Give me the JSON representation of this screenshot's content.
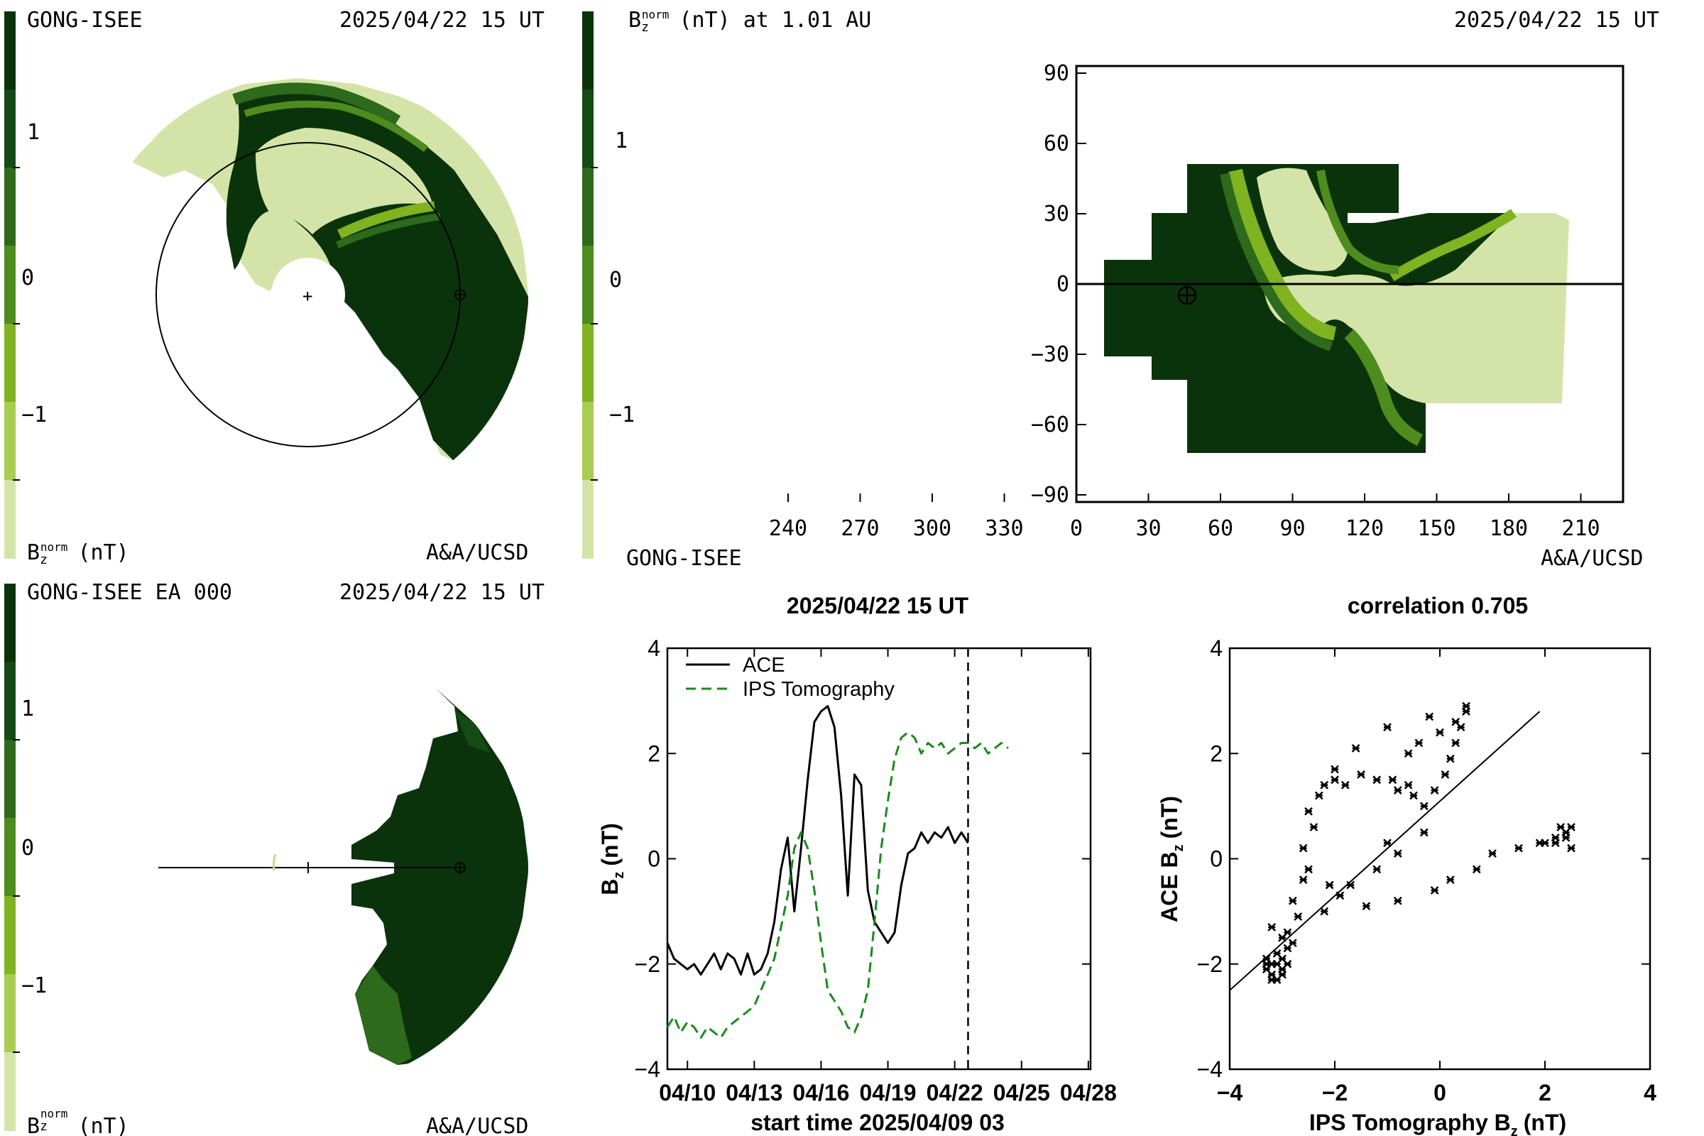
{
  "colors": {
    "scale": [
      "#d4e4a8",
      "#a9cc52",
      "#7fb320",
      "#4f8c1e",
      "#2d6a1c",
      "#144a14",
      "#0b330b"
    ],
    "obs": "#000000",
    "model": "#1a8a1a"
  },
  "panel_tl": {
    "source": "GONG-ISEE",
    "datetime": "2025/04/22 15 UT",
    "credit": "A&A/UCSD",
    "bar_title": "B",
    "bar_sub": "z",
    "bar_sup": "norm",
    "bar_unit": "(nT)",
    "ticks": [
      "1",
      "0",
      "−1"
    ]
  },
  "panel_tr": {
    "title_var": "B",
    "title_sub": "z",
    "title_sup": "norm",
    "title_rest": "(nT) at 1.01 AU",
    "datetime": "2025/04/22 15 UT",
    "source": "GONG-ISEE",
    "credit": "A&A/UCSD",
    "bar_ticks": [
      "1",
      "0",
      "−1"
    ],
    "yticks": [
      "90",
      "60",
      "30",
      "0",
      "−30",
      "−60",
      "−90"
    ],
    "xticks": [
      "240",
      "270",
      "300",
      "330",
      "0",
      "30",
      "60",
      "90",
      "120",
      "150",
      "180",
      "210"
    ]
  },
  "panel_bl": {
    "source": "GONG-ISEE EA 000",
    "datetime": "2025/04/22 15 UT",
    "credit": "A&A/UCSD",
    "bar_title": "B",
    "bar_sub": "z",
    "bar_sup": "norm",
    "bar_unit": "(nT)",
    "ticks": [
      "1",
      "0",
      "−1"
    ]
  },
  "chart_data": [
    {
      "type": "line",
      "title": "2025/04/22 15 UT",
      "xlabel": "start time 2025/04/09 03",
      "ylabel": "B",
      "ylabel_sub": "z",
      "ylabel_unit": "(nT)",
      "xlim": [
        0,
        19
      ],
      "ylim": [
        -4,
        4
      ],
      "xtick_values": [
        0.9,
        3.9,
        6.9,
        9.9,
        12.9,
        15.9,
        18.9
      ],
      "xtick_labels": [
        "04/10",
        "04/13",
        "04/16",
        "04/19",
        "04/22",
        "04/25",
        "04/28"
      ],
      "ytick_values": [
        4,
        2,
        0,
        -2,
        -4
      ],
      "ytick_labels": [
        "4",
        "2",
        "0",
        "−2",
        "−4"
      ],
      "marker_x": 13.5,
      "legend_position": "top-left",
      "series": [
        {
          "name": "ACE",
          "style": "solid",
          "x": [
            0,
            0.3,
            0.6,
            0.9,
            1.2,
            1.5,
            1.8,
            2.1,
            2.4,
            2.7,
            3.0,
            3.3,
            3.6,
            3.9,
            4.2,
            4.5,
            4.8,
            5.1,
            5.4,
            5.7,
            6.0,
            6.3,
            6.6,
            6.9,
            7.2,
            7.5,
            7.8,
            8.1,
            8.4,
            8.7,
            9.0,
            9.3,
            9.6,
            9.9,
            10.2,
            10.5,
            10.8,
            11.1,
            11.4,
            11.7,
            12.0,
            12.3,
            12.6,
            12.9,
            13.2,
            13.5
          ],
          "values": [
            -1.6,
            -1.9,
            -2.0,
            -2.1,
            -2.0,
            -2.2,
            -2.0,
            -1.8,
            -2.1,
            -1.8,
            -1.9,
            -2.2,
            -1.8,
            -2.2,
            -2.1,
            -1.8,
            -1.2,
            -0.2,
            0.4,
            -1.0,
            0.2,
            1.5,
            2.6,
            2.8,
            2.9,
            2.5,
            1.2,
            -0.7,
            1.6,
            1.4,
            -0.6,
            -1.2,
            -1.4,
            -1.6,
            -1.4,
            -0.5,
            0.1,
            0.2,
            0.5,
            0.3,
            0.5,
            0.4,
            0.6,
            0.3,
            0.5,
            0.3
          ]
        },
        {
          "name": "IPS Tomography",
          "style": "dashed",
          "x": [
            0,
            0.3,
            0.6,
            0.9,
            1.2,
            1.5,
            1.8,
            2.1,
            2.4,
            2.7,
            3.0,
            3.3,
            3.6,
            3.9,
            4.2,
            4.5,
            4.8,
            5.1,
            5.4,
            5.7,
            6.0,
            6.3,
            6.6,
            6.9,
            7.2,
            7.5,
            7.8,
            8.1,
            8.4,
            8.7,
            9.0,
            9.3,
            9.6,
            9.9,
            10.2,
            10.5,
            10.8,
            11.1,
            11.4,
            11.7,
            12.0,
            12.3,
            12.6,
            12.9,
            13.2,
            13.5,
            13.8,
            14.1,
            14.4,
            14.7,
            15.0,
            15.3
          ],
          "values": [
            -3.2,
            -3.0,
            -3.3,
            -3.1,
            -3.2,
            -3.4,
            -3.2,
            -3.3,
            -3.4,
            -3.2,
            -3.1,
            -3.0,
            -2.9,
            -2.8,
            -2.5,
            -2.2,
            -1.9,
            -1.3,
            -0.7,
            0.2,
            0.5,
            0.2,
            -0.6,
            -1.6,
            -2.5,
            -2.7,
            -2.9,
            -3.2,
            -3.3,
            -3.0,
            -2.5,
            -1.2,
            0.2,
            1.1,
            1.9,
            2.3,
            2.4,
            2.3,
            2.0,
            2.2,
            2.1,
            2.2,
            2.0,
            2.1,
            2.2,
            2.2,
            2.1,
            2.2,
            2.0,
            2.1,
            2.2,
            2.1
          ]
        }
      ]
    },
    {
      "type": "scatter",
      "title": "correlation 0.705",
      "xlabel": "IPS Tomography B",
      "xlabel_sub": "z",
      "xlabel_unit": "(nT)",
      "ylabel": "ACE B",
      "ylabel_sub": "z",
      "ylabel_unit": "(nT)",
      "xlim": [
        -4,
        4
      ],
      "ylim": [
        -4,
        4
      ],
      "xtick_values": [
        -4,
        -2,
        0,
        2,
        4
      ],
      "xtick_labels": [
        "−4",
        "−2",
        "0",
        "2",
        "4"
      ],
      "ytick_values": [
        4,
        2,
        0,
        -2,
        -4
      ],
      "ytick_labels": [
        "4",
        "2",
        "0",
        "−2",
        "−4"
      ],
      "fit_line": {
        "x": [
          -4.0,
          1.9
        ],
        "y": [
          -2.5,
          2.8
        ]
      },
      "points": [
        [
          -3.3,
          -2.1
        ],
        [
          -3.2,
          -2.2
        ],
        [
          -3.1,
          -2.0
        ],
        [
          -3.3,
          -1.9
        ],
        [
          -3.0,
          -2.2
        ],
        [
          -3.2,
          -2.3
        ],
        [
          -3.1,
          -1.8
        ],
        [
          -2.9,
          -1.7
        ],
        [
          -3.0,
          -1.9
        ],
        [
          -3.2,
          -2.0
        ],
        [
          -3.3,
          -2.0
        ],
        [
          -3.0,
          -2.1
        ],
        [
          -2.9,
          -2.0
        ],
        [
          -3.1,
          -2.3
        ],
        [
          -2.8,
          -1.6
        ],
        [
          -3.0,
          -1.5
        ],
        [
          -2.9,
          -1.4
        ],
        [
          -3.2,
          -1.3
        ],
        [
          -2.7,
          -1.1
        ],
        [
          -2.8,
          -0.8
        ],
        [
          -2.6,
          -0.4
        ],
        [
          -2.5,
          -0.2
        ],
        [
          -2.6,
          0.2
        ],
        [
          -2.4,
          0.6
        ],
        [
          -2.5,
          0.9
        ],
        [
          -2.3,
          1.2
        ],
        [
          -2.2,
          1.4
        ],
        [
          -2.0,
          1.5
        ],
        [
          -1.8,
          1.4
        ],
        [
          -1.5,
          1.6
        ],
        [
          -1.2,
          1.5
        ],
        [
          -0.9,
          1.5
        ],
        [
          -0.8,
          1.3
        ],
        [
          -0.6,
          1.4
        ],
        [
          -0.5,
          1.2
        ],
        [
          -0.3,
          1.0
        ],
        [
          -0.1,
          1.3
        ],
        [
          0.1,
          1.6
        ],
        [
          0.2,
          1.9
        ],
        [
          0.3,
          2.2
        ],
        [
          0.4,
          2.5
        ],
        [
          0.5,
          2.8
        ],
        [
          0.5,
          2.9
        ],
        [
          0.3,
          2.6
        ],
        [
          -0.2,
          2.7
        ],
        [
          -1.0,
          2.5
        ],
        [
          -1.6,
          2.1
        ],
        [
          -2.0,
          1.7
        ],
        [
          -0.6,
          2.0
        ],
        [
          0.0,
          2.4
        ],
        [
          -0.4,
          2.2
        ],
        [
          -2.2,
          -1.0
        ],
        [
          -1.7,
          -0.5
        ],
        [
          -1.2,
          -0.2
        ],
        [
          -0.8,
          0.1
        ],
        [
          -0.3,
          0.5
        ],
        [
          -1.0,
          0.3
        ],
        [
          -2.1,
          -0.5
        ],
        [
          -1.9,
          -0.7
        ],
        [
          -1.4,
          -0.9
        ],
        [
          -0.8,
          -0.8
        ],
        [
          -0.1,
          -0.6
        ],
        [
          0.2,
          -0.4
        ],
        [
          0.7,
          -0.2
        ],
        [
          1.0,
          0.1
        ],
        [
          1.5,
          0.2
        ],
        [
          1.9,
          0.3
        ],
        [
          2.2,
          0.3
        ],
        [
          2.4,
          0.4
        ],
        [
          2.5,
          0.6
        ],
        [
          2.4,
          0.5
        ],
        [
          2.2,
          0.4
        ],
        [
          2.5,
          0.2
        ],
        [
          2.3,
          0.6
        ],
        [
          2.0,
          0.3
        ]
      ]
    }
  ]
}
